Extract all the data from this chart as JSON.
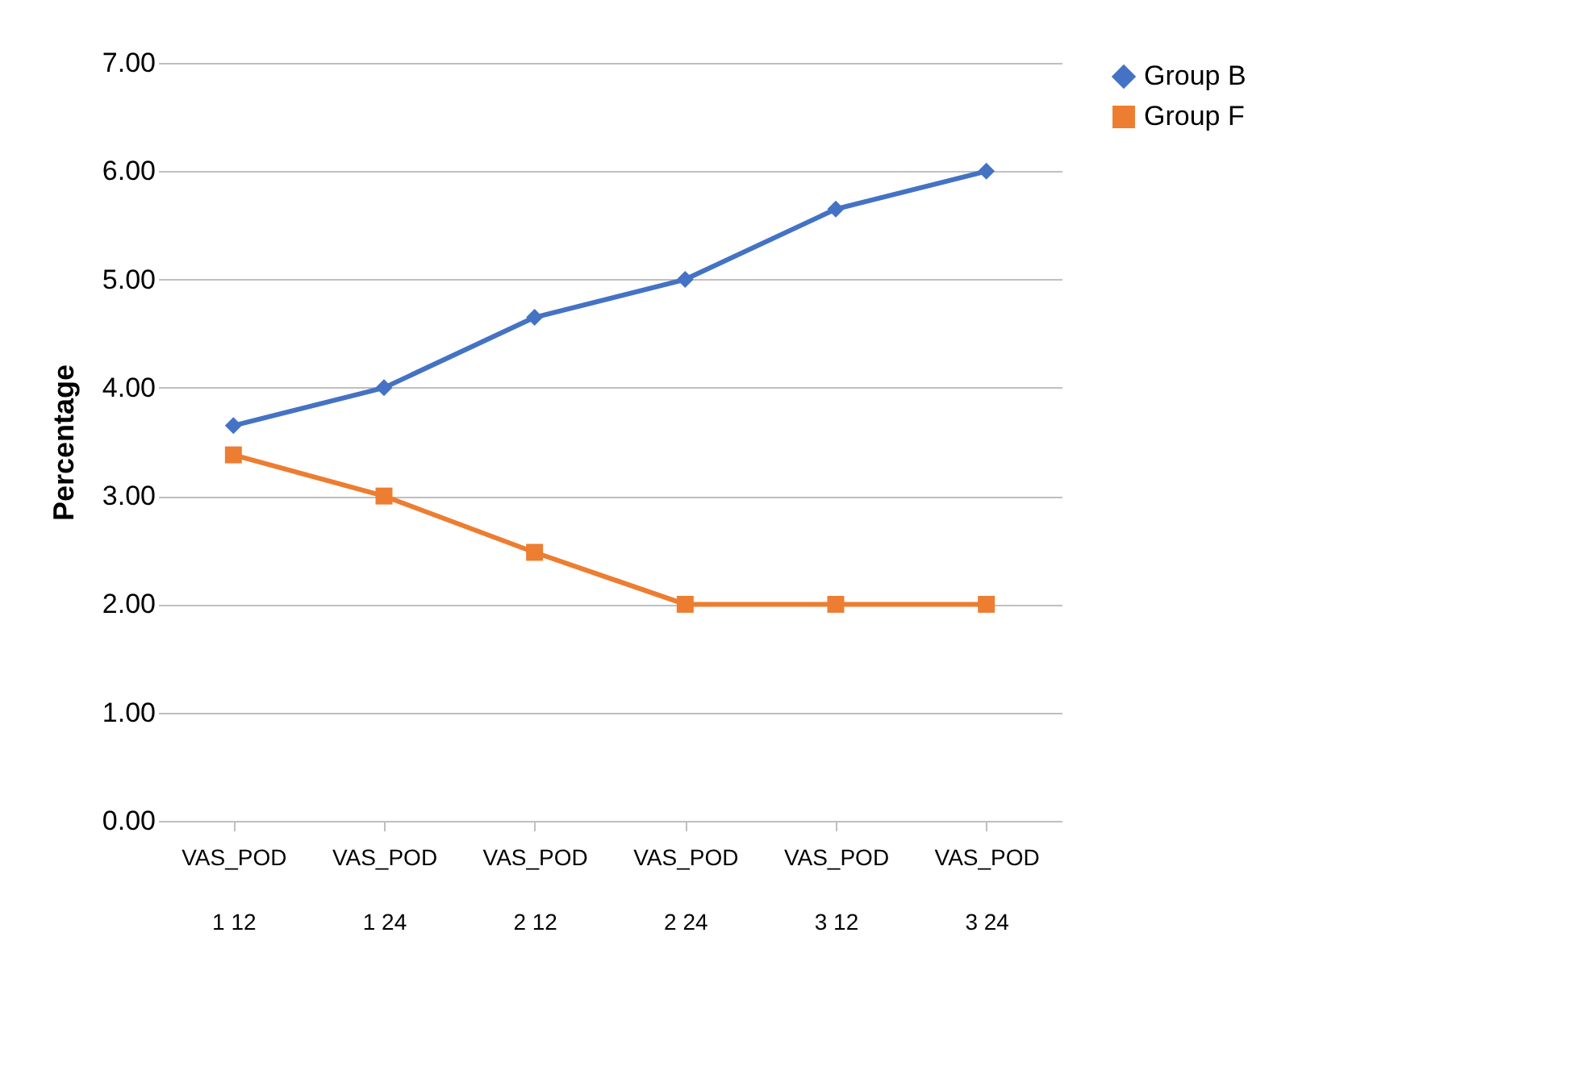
{
  "chart_data": {
    "type": "line",
    "ylabel": "Percentage",
    "categories": [
      "VAS_POD\n1 12",
      "VAS_POD\n1 24",
      "VAS_POD\n2 12",
      "VAS_POD\n2 24",
      "VAS_POD\n3 12",
      "VAS_POD\n3 24"
    ],
    "series": [
      {
        "name": "Group B",
        "color": "#4472c4",
        "marker": "diamond",
        "values": [
          3.65,
          4.0,
          4.65,
          5.0,
          5.65,
          6.0
        ]
      },
      {
        "name": "Group F",
        "color": "#ed7d31",
        "marker": "square",
        "values": [
          3.38,
          3.0,
          2.48,
          2.0,
          2.0,
          2.0
        ]
      }
    ],
    "ylim": [
      0,
      7
    ],
    "yticks": [
      {
        "value": 0,
        "label": "0.00"
      },
      {
        "value": 1,
        "label": "1.00"
      },
      {
        "value": 2,
        "label": "2.00"
      },
      {
        "value": 3,
        "label": "3.00"
      },
      {
        "value": 4,
        "label": "4.00"
      },
      {
        "value": 5,
        "label": "5.00"
      },
      {
        "value": 6,
        "label": "6.00"
      },
      {
        "value": 7,
        "label": "7.00"
      }
    ],
    "grid": "y",
    "legend": "right",
    "line_style": "solid"
  }
}
